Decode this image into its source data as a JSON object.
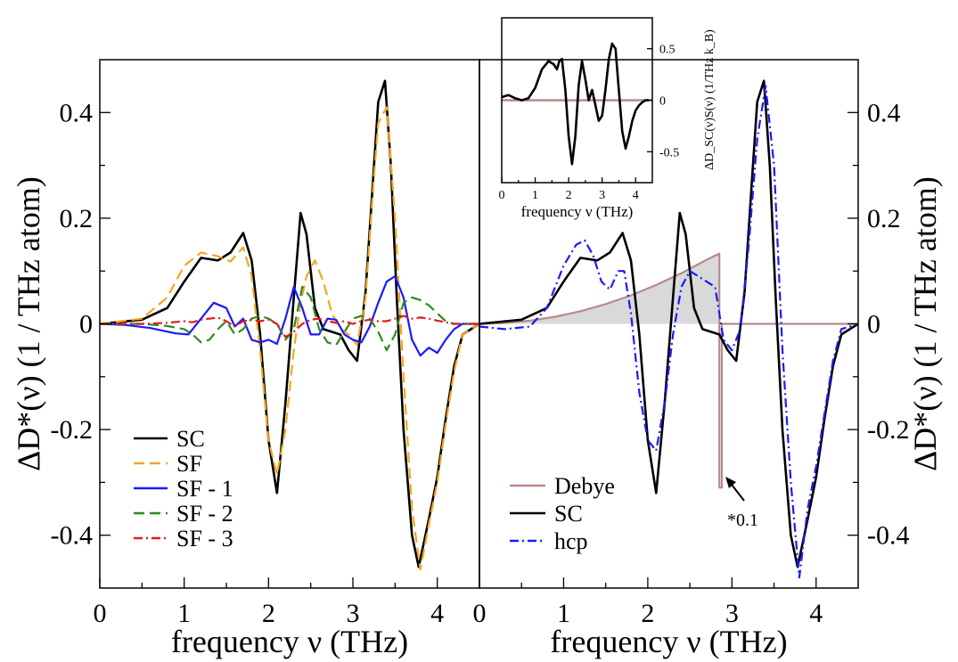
{
  "chart_data": [
    {
      "type": "line",
      "panel": "left",
      "xlabel": "frequency ν (THz)",
      "ylabel": "ΔD*(ν) (1 / THz atom)",
      "xlim": [
        0,
        4.5
      ],
      "ylim": [
        -0.5,
        0.5
      ],
      "xticks": [
        "0",
        "1",
        "2",
        "3",
        "4"
      ],
      "yticks": [
        "-0.4",
        "-0.2",
        "0",
        "0.2",
        "0.4"
      ],
      "legend_position": "bottom-left",
      "series": [
        {
          "name": "SC",
          "color": "#000000",
          "style": "solid",
          "x": [
            0,
            0.5,
            0.8,
            1.0,
            1.2,
            1.4,
            1.55,
            1.7,
            1.8,
            1.9,
            2.0,
            2.1,
            2.2,
            2.3,
            2.38,
            2.45,
            2.55,
            2.65,
            2.75,
            2.85,
            2.95,
            3.05,
            3.15,
            3.25,
            3.3,
            3.38,
            3.45,
            3.52,
            3.6,
            3.7,
            3.78,
            3.9,
            4.0,
            4.1,
            4.2,
            4.3,
            4.5
          ],
          "y": [
            0,
            0.008,
            0.03,
            0.08,
            0.125,
            0.12,
            0.135,
            0.172,
            0.12,
            -0.02,
            -0.22,
            -0.32,
            -0.15,
            0.05,
            0.21,
            0.17,
            0.03,
            -0.01,
            -0.015,
            -0.02,
            -0.05,
            -0.07,
            0.06,
            0.3,
            0.42,
            0.46,
            0.3,
            0.05,
            -0.2,
            -0.4,
            -0.46,
            -0.37,
            -0.29,
            -0.18,
            -0.08,
            -0.02,
            0
          ]
        },
        {
          "name": "SF",
          "color": "#f5a623",
          "style": "dashed",
          "x": [
            0,
            0.5,
            0.8,
            1.0,
            1.2,
            1.4,
            1.55,
            1.7,
            1.8,
            1.9,
            2.0,
            2.1,
            2.2,
            2.3,
            2.38,
            2.45,
            2.55,
            2.65,
            2.75,
            2.85,
            2.95,
            3.05,
            3.15,
            3.25,
            3.3,
            3.4,
            3.5,
            3.6,
            3.7,
            3.8,
            3.9,
            4.0,
            4.1,
            4.2,
            4.3,
            4.5
          ],
          "y": [
            0,
            0.01,
            0.05,
            0.11,
            0.135,
            0.128,
            0.118,
            0.145,
            0.09,
            -0.05,
            -0.22,
            -0.285,
            -0.2,
            -0.05,
            0.04,
            0.09,
            0.12,
            0.08,
            0.02,
            -0.01,
            -0.02,
            -0.04,
            0.05,
            0.28,
            0.38,
            0.41,
            0.2,
            -0.1,
            -0.35,
            -0.465,
            -0.38,
            -0.3,
            -0.19,
            -0.09,
            -0.02,
            0
          ]
        },
        {
          "name": "SF - 1",
          "color": "#1a1aff",
          "style": "solid",
          "x": [
            0,
            0.3,
            0.6,
            0.9,
            1.05,
            1.2,
            1.35,
            1.5,
            1.6,
            1.7,
            1.8,
            1.9,
            2.0,
            2.1,
            2.2,
            2.3,
            2.4,
            2.5,
            2.6,
            2.7,
            2.8,
            2.9,
            3.0,
            3.1,
            3.2,
            3.3,
            3.4,
            3.5,
            3.6,
            3.7,
            3.8,
            3.9,
            4.0,
            4.1,
            4.2,
            4.3,
            4.5
          ],
          "y": [
            0,
            -0.002,
            -0.008,
            -0.018,
            -0.02,
            0.01,
            0.04,
            0.03,
            -0.005,
            0.01,
            -0.03,
            -0.035,
            -0.03,
            -0.038,
            0.01,
            0.07,
            0.03,
            -0.02,
            -0.02,
            0.01,
            0.008,
            -0.02,
            -0.03,
            -0.035,
            -0.005,
            0.04,
            0.08,
            0.09,
            0.05,
            -0.03,
            -0.06,
            -0.045,
            -0.055,
            -0.03,
            -0.01,
            0,
            0
          ]
        },
        {
          "name": "SF - 2",
          "color": "#2e8b1e",
          "style": "dashed",
          "x": [
            0,
            0.5,
            0.8,
            1.0,
            1.1,
            1.2,
            1.3,
            1.4,
            1.5,
            1.6,
            1.7,
            1.8,
            1.9,
            2.0,
            2.1,
            2.2,
            2.3,
            2.4,
            2.5,
            2.6,
            2.7,
            2.8,
            2.9,
            3.0,
            3.1,
            3.2,
            3.3,
            3.4,
            3.5,
            3.6,
            3.7,
            3.8,
            3.9,
            4.0,
            4.1,
            4.2,
            4.3,
            4.5
          ],
          "y": [
            0,
            0,
            -0.004,
            -0.01,
            -0.02,
            -0.035,
            -0.03,
            -0.01,
            0.005,
            -0.02,
            -0.01,
            0.01,
            0.015,
            0.01,
            0.0,
            -0.03,
            -0.01,
            0.07,
            0.05,
            -0.01,
            -0.035,
            -0.04,
            -0.015,
            0.01,
            0.015,
            0.01,
            -0.015,
            -0.05,
            -0.02,
            0.04,
            0.05,
            0.045,
            0.035,
            0.02,
            0.005,
            0,
            0,
            0
          ]
        },
        {
          "name": "SF - 3",
          "color": "#e41a1c",
          "style": "dashdot",
          "x": [
            0,
            0.5,
            0.8,
            1.0,
            1.1,
            1.2,
            1.3,
            1.4,
            1.5,
            1.6,
            1.7,
            1.8,
            1.9,
            2.0,
            2.1,
            2.2,
            2.3,
            2.4,
            2.5,
            2.6,
            2.7,
            2.8,
            2.9,
            3.0,
            3.1,
            3.2,
            3.3,
            3.4,
            3.5,
            3.6,
            3.7,
            3.8,
            3.9,
            4.0,
            4.1,
            4.2,
            4.5
          ],
          "y": [
            0,
            0,
            0.002,
            0.005,
            0.003,
            0.008,
            0.01,
            0.012,
            0.005,
            -0.005,
            0.005,
            0.008,
            0.005,
            0.008,
            0.0,
            -0.025,
            -0.015,
            0.0,
            0.008,
            0.01,
            0.005,
            0.002,
            0.005,
            0.0,
            0.005,
            0.008,
            0.005,
            0.005,
            0.01,
            0.015,
            0.01,
            0.012,
            0.01,
            0.006,
            0.003,
            0,
            0
          ]
        }
      ]
    },
    {
      "type": "line",
      "panel": "right",
      "xlabel": "frequency ν (THz)",
      "ylabel": "ΔD*(ν) (1 / THz atom)",
      "xlim": [
        0,
        4.5
      ],
      "ylim": [
        -0.5,
        0.5
      ],
      "xticks": [
        "0",
        "1",
        "2",
        "3",
        "4"
      ],
      "yticks": [
        "-0.4",
        "-0.2",
        "0",
        "0.2",
        "0.4"
      ],
      "legend_position": "bottom-left",
      "annotation": "*0.1",
      "series": [
        {
          "name": "Debye",
          "color": "#b88a8a",
          "style": "solid",
          "fill": "#d9d9d9",
          "x": [
            0,
            0.3,
            0.6,
            0.9,
            1.2,
            1.5,
            1.8,
            2.1,
            2.4,
            2.7,
            2.85,
            2.85,
            2.88,
            2.88,
            4.5
          ],
          "y": [
            0,
            0.0015,
            0.006,
            0.0135,
            0.024,
            0.0375,
            0.054,
            0.0735,
            0.096,
            0.1215,
            0.133,
            -0.31,
            -0.31,
            0,
            0
          ]
        },
        {
          "name": "SC",
          "color": "#000000",
          "style": "solid",
          "x": [
            0,
            0.5,
            0.8,
            1.0,
            1.2,
            1.4,
            1.55,
            1.7,
            1.8,
            1.9,
            2.0,
            2.1,
            2.2,
            2.3,
            2.38,
            2.45,
            2.55,
            2.65,
            2.75,
            2.85,
            2.95,
            3.05,
            3.15,
            3.25,
            3.3,
            3.38,
            3.45,
            3.52,
            3.6,
            3.7,
            3.78,
            3.9,
            4.0,
            4.1,
            4.2,
            4.3,
            4.5
          ],
          "y": [
            0,
            0.008,
            0.03,
            0.08,
            0.125,
            0.12,
            0.135,
            0.172,
            0.12,
            -0.02,
            -0.22,
            -0.32,
            -0.15,
            0.05,
            0.21,
            0.17,
            0.03,
            -0.01,
            -0.015,
            -0.02,
            -0.05,
            -0.07,
            0.06,
            0.3,
            0.42,
            0.46,
            0.3,
            0.05,
            -0.2,
            -0.4,
            -0.46,
            -0.37,
            -0.29,
            -0.18,
            -0.08,
            -0.02,
            0
          ]
        },
        {
          "name": "hcp",
          "color": "#1a1aff",
          "style": "dashdot",
          "x": [
            0,
            0.3,
            0.6,
            0.8,
            1.0,
            1.15,
            1.25,
            1.35,
            1.45,
            1.55,
            1.65,
            1.72,
            1.8,
            1.9,
            2.0,
            2.1,
            2.2,
            2.3,
            2.4,
            2.5,
            2.6,
            2.7,
            2.8,
            2.9,
            3.0,
            3.1,
            3.2,
            3.3,
            3.4,
            3.5,
            3.6,
            3.7,
            3.8,
            3.9,
            4.0,
            4.1,
            4.2,
            4.3,
            4.5
          ],
          "y": [
            -0.005,
            -0.01,
            -0.005,
            0.03,
            0.11,
            0.15,
            0.158,
            0.13,
            0.08,
            0.065,
            0.1,
            0.1,
            0.02,
            -0.13,
            -0.22,
            -0.24,
            -0.15,
            -0.02,
            0.07,
            0.1,
            0.09,
            0.08,
            0.07,
            -0.03,
            -0.05,
            -0.01,
            0.15,
            0.35,
            0.45,
            0.3,
            -0.05,
            -0.3,
            -0.48,
            -0.35,
            -0.27,
            -0.17,
            -0.07,
            -0.01,
            0
          ]
        }
      ]
    },
    {
      "type": "line",
      "panel": "inset",
      "xlabel": "frequency ν (THz)",
      "ylabel": "ΔD_SC(ν)S(ν) (1/THz k_B)",
      "xlim": [
        0,
        4.5
      ],
      "ylim": [
        -0.8,
        0.8
      ],
      "xticks": [
        "0",
        "1",
        "2",
        "3",
        "4"
      ],
      "yticks": [
        "-0.5",
        "0",
        "0.5"
      ],
      "series": [
        {
          "name": "zero",
          "color": "#b88a8a",
          "style": "solid",
          "x": [
            0,
            4.5
          ],
          "y": [
            0,
            0
          ]
        },
        {
          "name": "SC",
          "color": "#000000",
          "style": "solid",
          "x": [
            0,
            0.2,
            0.4,
            0.6,
            0.8,
            1.0,
            1.2,
            1.4,
            1.55,
            1.65,
            1.72,
            1.8,
            1.9,
            2.0,
            2.1,
            2.2,
            2.3,
            2.4,
            2.5,
            2.6,
            2.7,
            2.8,
            2.9,
            3.0,
            3.1,
            3.2,
            3.3,
            3.4,
            3.5,
            3.6,
            3.7,
            3.8,
            3.9,
            4.0,
            4.1,
            4.2,
            4.3,
            4.4
          ],
          "y": [
            0.03,
            0.05,
            0.02,
            0.0,
            0.02,
            0.12,
            0.3,
            0.38,
            0.35,
            0.3,
            0.38,
            0.4,
            0.1,
            -0.35,
            -0.62,
            -0.35,
            0.15,
            0.38,
            0.2,
            0.0,
            0.1,
            -0.05,
            -0.2,
            -0.15,
            0.1,
            0.4,
            0.55,
            0.5,
            0.1,
            -0.3,
            -0.47,
            -0.35,
            -0.2,
            -0.1,
            -0.05,
            -0.02,
            0,
            0
          ]
        }
      ]
    }
  ]
}
